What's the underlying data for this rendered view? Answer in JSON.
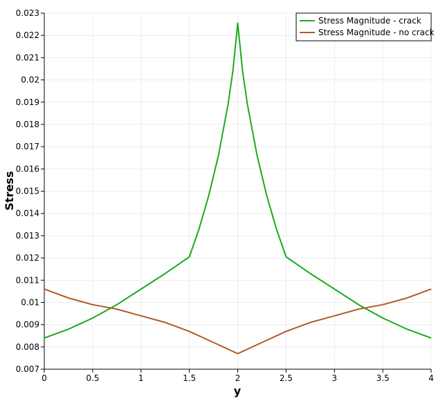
{
  "chart_data": {
    "type": "line",
    "xlabel": "y",
    "ylabel": "Stress",
    "xlim": [
      0,
      4
    ],
    "ylim": [
      0.007,
      0.023
    ],
    "x_ticks": [
      "0",
      "0.5",
      "1",
      "1.5",
      "2",
      "2.5",
      "3",
      "3.5",
      "4"
    ],
    "y_ticks": [
      "0.007",
      "0.008",
      "0.009",
      "0.01",
      "0.011",
      "0.012",
      "0.013",
      "0.014",
      "0.015",
      "0.016",
      "0.017",
      "0.018",
      "0.019",
      "0.02",
      "0.021",
      "0.022",
      "0.023"
    ],
    "grid": true,
    "legend_position": "top-right",
    "series": [
      {
        "name": "Stress Magnitude - crack",
        "color": "#1aaa1a",
        "x": [
          0,
          0.25,
          0.5,
          0.75,
          1.0,
          1.25,
          1.5,
          1.6,
          1.7,
          1.8,
          1.9,
          1.95,
          2.0,
          2.05,
          2.1,
          2.2,
          2.3,
          2.4,
          2.5,
          2.75,
          3.0,
          3.25,
          3.5,
          3.75,
          4.0
        ],
        "y": [
          0.0084,
          0.0088,
          0.0093,
          0.0099,
          0.0106,
          0.0113,
          0.01205,
          0.0133,
          0.0148,
          0.0166,
          0.0189,
          0.0204,
          0.02255,
          0.0204,
          0.0189,
          0.0166,
          0.0148,
          0.0133,
          0.01205,
          0.0113,
          0.0106,
          0.0099,
          0.0093,
          0.0088,
          0.0084
        ]
      },
      {
        "name": "Stress Magnitude - no crack",
        "color": "#b05a2a",
        "x": [
          0,
          0.25,
          0.5,
          0.75,
          1.0,
          1.25,
          1.5,
          1.75,
          2.0,
          2.25,
          2.5,
          2.75,
          3.0,
          3.25,
          3.5,
          3.75,
          4.0
        ],
        "y": [
          0.0106,
          0.0102,
          0.0099,
          0.0097,
          0.0094,
          0.0091,
          0.0087,
          0.0082,
          0.0077,
          0.0082,
          0.0087,
          0.0091,
          0.0094,
          0.0097,
          0.0099,
          0.0102,
          0.0106
        ]
      }
    ]
  }
}
